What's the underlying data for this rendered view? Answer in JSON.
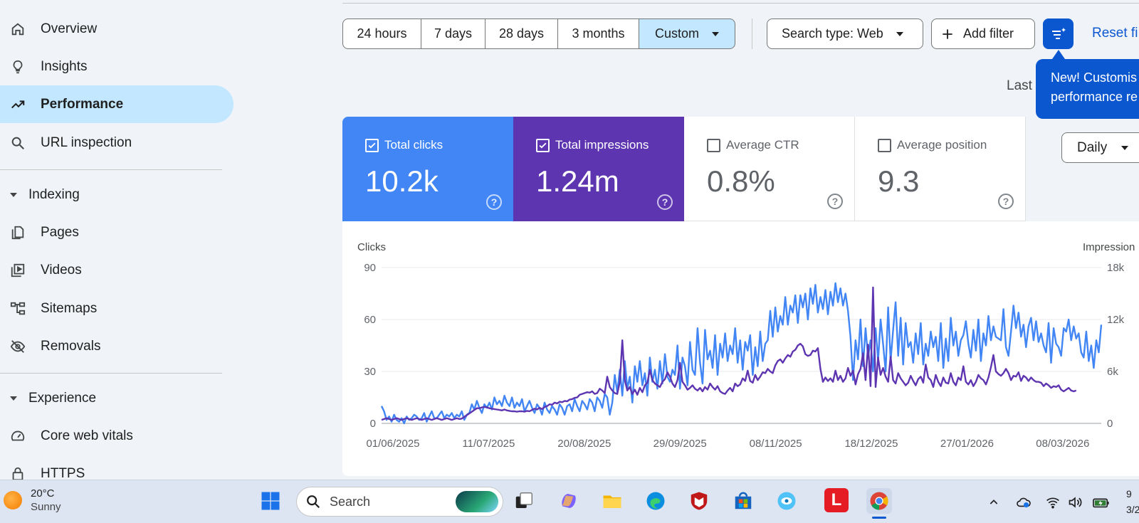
{
  "sidebar": {
    "items": [
      {
        "label": "Overview",
        "icon": "home-icon"
      },
      {
        "label": "Insights",
        "icon": "lightbulb-icon"
      },
      {
        "label": "Performance",
        "icon": "trending-up-icon",
        "active": true
      },
      {
        "label": "URL inspection",
        "icon": "search-icon"
      }
    ],
    "indexing": {
      "header": "Indexing",
      "items": [
        {
          "label": "Pages",
          "icon": "pages-icon"
        },
        {
          "label": "Videos",
          "icon": "video-library-icon"
        },
        {
          "label": "Sitemaps",
          "icon": "sitemap-icon"
        },
        {
          "label": "Removals",
          "icon": "eye-off-icon"
        }
      ]
    },
    "experience": {
      "header": "Experience",
      "items": [
        {
          "label": "Core web vitals",
          "icon": "speed-gauge-icon"
        },
        {
          "label": "HTTPS",
          "icon": "lock-icon"
        }
      ]
    }
  },
  "toolbar": {
    "date_ranges": [
      "24 hours",
      "7 days",
      "28 days",
      "3 months",
      "Custom"
    ],
    "selected_range": "Custom",
    "search_type": "Search type: Web",
    "add_filter": "Add filter",
    "reset": "Reset fi",
    "last_text": "Last"
  },
  "tooltip": {
    "line1": "New! Customis",
    "line2": "performance re"
  },
  "metrics": [
    {
      "label": "Total clicks",
      "value": "10.2k",
      "checked": true,
      "color": "#4285f4"
    },
    {
      "label": "Total impressions",
      "value": "1.24m",
      "checked": true,
      "color": "#5e35b1"
    },
    {
      "label": "Average CTR",
      "value": "0.8%",
      "checked": false
    },
    {
      "label": "Average position",
      "value": "9.3",
      "checked": false
    }
  ],
  "granularity": "Daily",
  "chart_data": {
    "type": "line",
    "ylabel_left": "Clicks",
    "ylabel_right": "Impression",
    "y_ticks_left": [
      "90",
      "60",
      "30",
      "0"
    ],
    "y_ticks_right": [
      "18k",
      "12k",
      "6k",
      "0"
    ],
    "ylim_left": [
      0,
      90
    ],
    "ylim_right": [
      0,
      18000
    ],
    "x_tick_labels": [
      "01/06/2025",
      "11/07/2025",
      "20/08/2025",
      "29/09/2025",
      "08/11/2025",
      "18/12/2025",
      "27/01/2026",
      "08/03/2026"
    ],
    "x_start": "01/06/2025",
    "series": [
      {
        "name": "Total clicks",
        "color": "#4285f4",
        "axis": "left",
        "values": [
          10,
          7,
          2,
          4,
          1,
          5,
          2,
          1,
          3,
          0,
          4,
          2,
          3,
          5,
          4,
          2,
          3,
          6,
          1,
          4,
          7,
          3,
          3,
          5,
          7,
          3,
          5,
          4,
          6,
          3,
          5,
          4,
          7,
          2,
          5,
          6,
          11,
          8,
          13,
          9,
          6,
          11,
          9,
          12,
          8,
          15,
          11,
          13,
          10,
          16,
          12,
          10,
          15,
          9,
          12,
          10,
          14,
          7,
          10,
          13,
          9,
          6,
          11,
          9,
          5,
          12,
          8,
          6,
          10,
          8,
          5,
          11,
          9,
          5,
          10,
          11,
          7,
          14,
          10,
          7,
          13,
          11,
          8,
          14,
          12,
          7,
          15,
          13,
          9,
          17,
          15,
          5,
          12,
          28,
          18,
          31,
          16,
          36,
          20,
          27,
          12,
          33,
          24,
          36,
          22,
          29,
          16,
          38,
          24,
          31,
          20,
          36,
          23,
          40,
          27,
          24,
          31,
          28,
          45,
          20,
          38,
          33,
          22,
          47,
          31,
          28,
          55,
          35,
          23,
          54,
          37,
          42,
          32,
          51,
          28,
          46,
          38,
          52,
          36,
          45,
          40,
          55,
          35,
          48,
          31,
          47,
          42,
          51,
          28,
          44,
          33,
          53,
          36,
          46,
          48,
          65,
          50,
          67,
          53,
          62,
          57,
          73,
          57,
          68,
          64,
          74,
          58,
          74,
          67,
          75,
          60,
          78,
          69,
          80,
          64,
          73,
          66,
          77,
          63,
          76,
          68,
          81,
          70,
          78,
          68,
          75,
          65,
          50,
          25,
          48,
          37,
          60,
          33,
          55,
          38,
          48,
          30,
          55,
          36,
          60,
          46,
          30,
          67,
          36,
          54,
          70,
          39,
          61,
          34,
          58,
          44,
          47,
          35,
          52,
          40,
          58,
          34,
          46,
          39,
          53,
          44,
          50,
          36,
          58,
          32,
          49,
          36,
          61,
          45,
          53,
          39,
          48,
          51,
          59,
          46,
          38,
          54,
          42,
          60,
          36,
          52,
          45,
          62,
          48,
          56,
          50,
          49,
          48,
          66,
          44,
          39,
          53,
          68,
          55,
          64,
          50,
          57,
          44,
          56,
          61,
          48,
          59,
          47,
          52,
          45,
          41,
          58,
          35,
          55,
          46,
          44,
          39,
          55,
          53,
          60,
          48,
          56,
          49,
          52,
          41,
          38,
          53,
          36,
          45,
          32,
          48,
          41,
          57
        ]
      },
      {
        "name": "Total impressions",
        "color": "#5e35b1",
        "axis": "right",
        "values": [
          400,
          500,
          600,
          500,
          400,
          500,
          600,
          500,
          400,
          500,
          600,
          500,
          400,
          500,
          600,
          500,
          400,
          500,
          600,
          500,
          400,
          500,
          600,
          500,
          400,
          500,
          600,
          500,
          400,
          500,
          600,
          500,
          550,
          750,
          950,
          1150,
          1350,
          1550,
          1750,
          1750,
          1850,
          1900,
          1850,
          1750,
          1700,
          1650,
          1600,
          1550,
          1500,
          1600,
          1500,
          1450,
          1400,
          1400,
          1350,
          1400,
          1400,
          1350,
          1450,
          1400,
          1550,
          1700,
          1600,
          1800,
          1650,
          1900,
          2000,
          2200,
          2150,
          2400,
          2300,
          2500,
          2450,
          2600,
          2550,
          2750,
          2800,
          2950,
          3000,
          3300,
          3400,
          3500,
          3600,
          3550,
          3700,
          3400,
          3500,
          4000,
          3800,
          3500,
          5400,
          4200,
          3800,
          3500,
          3400,
          4800,
          9600,
          5000,
          3800,
          4200,
          3400,
          3900,
          3300,
          4100,
          3600,
          4400,
          4700,
          6200,
          5000,
          4600,
          4400,
          4200,
          4800,
          5100,
          5900,
          5400,
          4600,
          4200,
          5000,
          7000,
          4800,
          4400,
          3900,
          4100,
          4400,
          4000,
          3800,
          4100,
          3700,
          4200,
          3900,
          4600,
          4200,
          3900,
          4300,
          3700,
          3500,
          3400,
          3800,
          4100,
          3700,
          4600,
          4300,
          4500,
          5200,
          4900,
          6100,
          4900,
          4700,
          5600,
          5000,
          5400,
          5900,
          5800,
          6300,
          6000,
          5800,
          6700,
          7200,
          7400,
          7000,
          7500,
          7900,
          7700,
          8300,
          8500,
          9000,
          9200,
          8900,
          8000,
          7800,
          7900,
          8400,
          8300,
          8700,
          6300,
          4800,
          5300,
          4900,
          5200,
          4800,
          6100,
          5000,
          5500,
          4800,
          5200,
          6400,
          5500,
          6100,
          4500,
          5700,
          6300,
          8100,
          5000,
          9100,
          4300,
          15700,
          4200,
          7600,
          5600,
          6400,
          5400,
          4800,
          7700,
          5000,
          4600,
          5800,
          5200,
          4800,
          4400,
          4700,
          5500,
          4900,
          4400,
          5100,
          5400,
          4700,
          6800,
          5300,
          5000,
          4200,
          5600,
          4800,
          4300,
          5300,
          4700,
          4600,
          5800,
          4800,
          4400,
          5300,
          5000,
          6600,
          4800,
          4500,
          5000,
          4300,
          4800,
          5600,
          5200,
          5000,
          4500,
          5300,
          6500,
          7900,
          6000,
          5700,
          5500,
          5800,
          6300,
          5800,
          5000,
          5500,
          5400,
          5900,
          4900,
          5500,
          5300,
          4900,
          5300,
          5000,
          4800,
          4800,
          4700,
          4300,
          4600,
          4400,
          4100,
          4300,
          4200,
          4400,
          3900,
          3700,
          3900,
          4100,
          3800,
          3700,
          3800
        ]
      }
    ]
  },
  "taskbar": {
    "temperature": "20°C",
    "condition": "Sunny",
    "search_placeholder": "Search",
    "clock_time": "9",
    "clock_date": "3/2"
  }
}
